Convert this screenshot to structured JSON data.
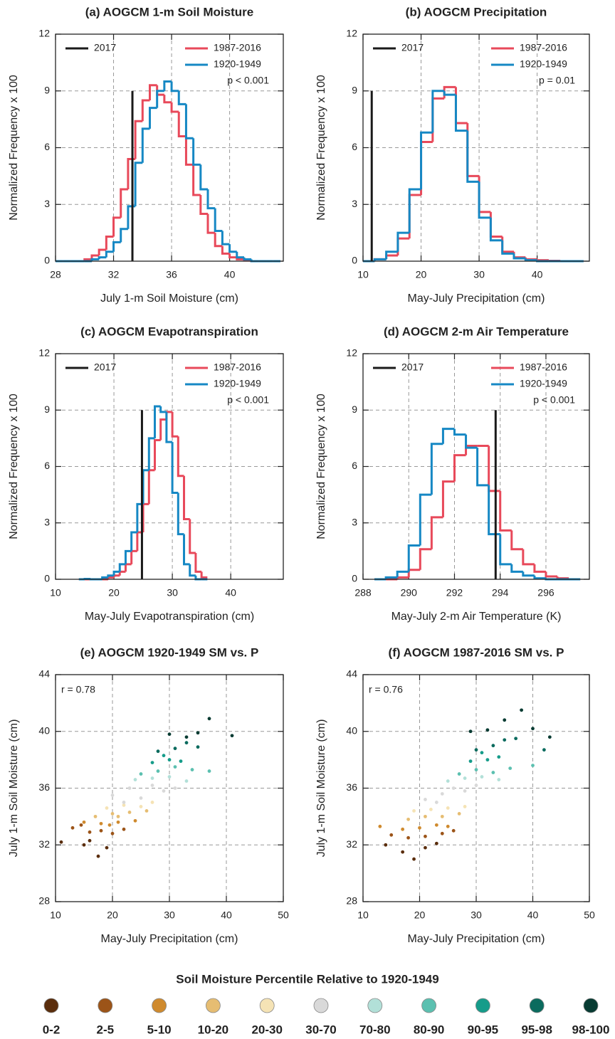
{
  "chart_data": [
    {
      "type": "histogram",
      "title": "(a) AOGCM 1-m Soil Moisture",
      "xlabel": "July 1-m Soil Moisture (cm)",
      "ylabel": "Normalized Frequency x 100",
      "xlim": [
        28,
        43.7
      ],
      "xticks": [
        28,
        32,
        36,
        40
      ],
      "ylim": [
        0,
        12
      ],
      "yticks": [
        0,
        3,
        6,
        9,
        12
      ],
      "grid": true,
      "annotation": "p < 0.001",
      "bins": [
        28,
        28.5,
        29,
        29.5,
        30,
        30.5,
        31,
        31.5,
        32,
        32.5,
        33,
        33.5,
        34,
        34.5,
        35,
        35.5,
        36,
        36.5,
        37,
        37.5,
        38,
        38.5,
        39,
        39.5,
        40,
        40.5,
        41,
        41.5,
        42,
        42.5,
        43,
        43.5
      ],
      "series": [
        {
          "name": "1987-2016",
          "color": "#e8495a",
          "values": [
            0,
            0,
            0,
            0,
            0.1,
            0.3,
            0.6,
            1.3,
            2.3,
            3.8,
            5.4,
            7.4,
            8.5,
            9.3,
            8.8,
            8.4,
            7.9,
            6.6,
            5.1,
            3.5,
            2.5,
            1.5,
            0.8,
            0.4,
            0.2,
            0.1,
            0.05,
            0,
            0,
            0,
            0
          ]
        },
        {
          "name": "1920-1949",
          "color": "#1688c4",
          "values": [
            0,
            0,
            0,
            0,
            0,
            0.1,
            0.2,
            0.5,
            1.0,
            1.7,
            2.9,
            5.2,
            7.0,
            8.1,
            9.0,
            9.5,
            9.0,
            8.3,
            6.5,
            5.1,
            3.8,
            2.8,
            1.6,
            0.9,
            0.5,
            0.2,
            0.1,
            0,
            0,
            0,
            0
          ]
        }
      ],
      "reference": {
        "name": "2017",
        "color": "#1a1a1a",
        "x": 33.3,
        "height": 9
      }
    },
    {
      "type": "histogram",
      "title": "(b) AOGCM Precipitation",
      "xlabel": "May-July Precipitation (cm)",
      "ylabel": "Normalized Frequency x 100",
      "xlim": [
        10,
        49
      ],
      "xticks": [
        10,
        20,
        30,
        40
      ],
      "ylim": [
        0,
        12
      ],
      "yticks": [
        0,
        3,
        6,
        9,
        12
      ],
      "grid": true,
      "annotation": "p = 0.01",
      "bins": [
        10,
        12,
        14,
        16,
        18,
        20,
        22,
        24,
        26,
        28,
        30,
        32,
        34,
        36,
        38,
        40,
        42,
        44,
        46,
        48
      ],
      "series": [
        {
          "name": "1987-2016",
          "color": "#e8495a",
          "values": [
            0,
            0.1,
            0.3,
            1.2,
            3.5,
            6.3,
            8.6,
            9.2,
            7.3,
            4.5,
            2.6,
            1.3,
            0.5,
            0.2,
            0.1,
            0.05,
            0.02,
            0,
            0
          ]
        },
        {
          "name": "1920-1949",
          "color": "#1688c4",
          "values": [
            0,
            0.1,
            0.5,
            1.5,
            3.8,
            6.8,
            9.0,
            8.8,
            6.9,
            4.2,
            2.3,
            1.1,
            0.4,
            0.15,
            0.05,
            0,
            0,
            0,
            0
          ]
        }
      ],
      "reference": {
        "name": "2017",
        "color": "#1a1a1a",
        "x": 11.5,
        "height": 9
      }
    },
    {
      "type": "histogram",
      "title": "(c) AOGCM Evapotranspiration",
      "xlabel": "May-July Evapotranspiration (cm)",
      "ylabel": "Normalized Frequency x 100",
      "xlim": [
        10,
        49
      ],
      "xticks": [
        10,
        20,
        30,
        40
      ],
      "ylim": [
        0,
        12
      ],
      "yticks": [
        0,
        3,
        6,
        9,
        12
      ],
      "grid": true,
      "annotation": "p < 0.001",
      "bins": [
        14,
        15,
        16,
        17,
        18,
        19,
        20,
        21,
        22,
        23,
        24,
        25,
        26,
        27,
        28,
        29,
        30,
        31,
        32,
        33,
        34,
        35,
        36
      ],
      "series": [
        {
          "name": "1987-2016",
          "color": "#e8495a",
          "values": [
            0,
            0,
            0,
            0,
            0,
            0.1,
            0.2,
            0.4,
            0.8,
            1.5,
            2.5,
            4.0,
            5.8,
            7.4,
            8.5,
            8.9,
            7.6,
            5.5,
            3.2,
            1.4,
            0.4,
            0.1
          ]
        },
        {
          "name": "1920-1949",
          "color": "#1688c4",
          "values": [
            0,
            0.02,
            0,
            0,
            0.1,
            0.2,
            0.4,
            0.8,
            1.5,
            2.5,
            4.0,
            5.8,
            7.5,
            9.2,
            8.9,
            7.3,
            4.6,
            2.4,
            0.8,
            0.2,
            0,
            0
          ]
        }
      ],
      "reference": {
        "name": "2017",
        "color": "#1a1a1a",
        "x": 24.8,
        "height": 9
      }
    },
    {
      "type": "histogram",
      "title": "(d) AOGCM 2-m Air Temperature",
      "xlabel": "May-July 2-m Air Temperature (K)",
      "ylabel": "Normalized Frequency x 100",
      "xlim": [
        288,
        297.9
      ],
      "xticks": [
        288,
        290,
        292,
        294,
        296
      ],
      "ylim": [
        0,
        12
      ],
      "yticks": [
        0,
        3,
        6,
        9,
        12
      ],
      "grid": true,
      "annotation": "p < 0.001",
      "bins": [
        288.5,
        289,
        289.5,
        290,
        290.5,
        291,
        291.5,
        292,
        292.5,
        293,
        293.5,
        294,
        294.5,
        295,
        295.5,
        296,
        296.5,
        297,
        297.5
      ],
      "series": [
        {
          "name": "1987-2016",
          "color": "#e8495a",
          "values": [
            0,
            0,
            0.1,
            0.5,
            1.6,
            3.3,
            5.2,
            6.6,
            7.1,
            7.1,
            4.7,
            2.6,
            1.6,
            0.8,
            0.4,
            0.15,
            0.05,
            0
          ]
        },
        {
          "name": "1920-1949",
          "color": "#1688c4",
          "values": [
            0,
            0.1,
            0.4,
            1.8,
            4.5,
            7.2,
            8.0,
            7.7,
            7.0,
            5.0,
            2.4,
            0.8,
            0.4,
            0.2,
            0.05,
            0,
            0,
            0
          ]
        }
      ],
      "reference": {
        "name": "2017",
        "color": "#1a1a1a",
        "x": 293.8,
        "height": 9
      }
    },
    {
      "type": "scatter",
      "title": "(e) AOGCM 1920-1949 SM vs. P",
      "xlabel": "May-July Precipitation (cm)",
      "ylabel": "July 1-m Soil Moisture (cm)",
      "xlim": [
        10,
        50
      ],
      "xticks": [
        10,
        20,
        30,
        40,
        50
      ],
      "ylim": [
        28,
        44
      ],
      "yticks": [
        28,
        32,
        36,
        40,
        44
      ],
      "grid": true,
      "annotation": "r = 0.78",
      "legend_title": "Soil Moisture Percentile Relative to 1920-1949",
      "series": [
        {
          "name": "0-2",
          "color": "#5a2d0c",
          "x": [
            11,
            15,
            17.5,
            19,
            16
          ],
          "y": [
            32.2,
            32.0,
            31.2,
            31.8,
            32.3
          ]
        },
        {
          "name": "2-5",
          "color": "#9c5418",
          "x": [
            13,
            16,
            18,
            20,
            22,
            14.5
          ],
          "y": [
            33.2,
            32.9,
            33.0,
            32.8,
            33.1,
            33.4
          ]
        },
        {
          "name": "5-10",
          "color": "#cf8a2e",
          "x": [
            15,
            18,
            21,
            24,
            19.5
          ],
          "y": [
            33.6,
            33.5,
            33.6,
            33.7,
            33.4
          ]
        },
        {
          "name": "10-20",
          "color": "#e6bd72",
          "x": [
            17,
            20,
            23,
            26,
            21
          ],
          "y": [
            34.0,
            34.2,
            34.3,
            34.4,
            34.0
          ]
        },
        {
          "name": "20-30",
          "color": "#f5e3b5",
          "x": [
            19,
            22,
            25,
            27
          ],
          "y": [
            34.6,
            34.8,
            34.7,
            35.0
          ]
        },
        {
          "name": "30-70",
          "color": "#d9d9d9",
          "x": [
            20,
            23,
            25,
            27,
            29,
            22,
            31
          ],
          "y": [
            35.5,
            36.0,
            35.3,
            36.2,
            35.8,
            35.0,
            36.0
          ]
        },
        {
          "name": "70-80",
          "color": "#b2e0d8",
          "x": [
            24,
            27,
            30,
            33
          ],
          "y": [
            36.6,
            36.7,
            36.8,
            36.5
          ]
        },
        {
          "name": "80-90",
          "color": "#5cc0b0",
          "x": [
            25,
            28,
            31,
            34,
            37
          ],
          "y": [
            37.0,
            37.2,
            37.5,
            37.3,
            37.2
          ]
        },
        {
          "name": "90-95",
          "color": "#169c8a",
          "x": [
            27,
            30,
            32,
            29
          ],
          "y": [
            37.8,
            38.0,
            37.9,
            38.3
          ]
        },
        {
          "name": "95-98",
          "color": "#0b6b5e",
          "x": [
            28,
            31,
            33,
            35
          ],
          "y": [
            38.6,
            38.8,
            39.2,
            38.9
          ]
        },
        {
          "name": "98-100",
          "color": "#073b32",
          "x": [
            30,
            33,
            35,
            37,
            41
          ],
          "y": [
            39.8,
            39.6,
            39.9,
            40.9,
            39.7
          ]
        }
      ]
    },
    {
      "type": "scatter",
      "title": "(f) AOGCM 1987-2016 SM vs. P",
      "xlabel": "May-July Precipitation (cm)",
      "ylabel": "July 1-m Soil Moisture (cm)",
      "xlim": [
        10,
        50
      ],
      "xticks": [
        10,
        20,
        30,
        40,
        50
      ],
      "ylim": [
        28,
        44
      ],
      "yticks": [
        28,
        32,
        36,
        40,
        44
      ],
      "grid": true,
      "annotation": "r = 0.76",
      "series": [
        {
          "color": "#5a2d0c",
          "x": [
            14,
            17,
            19,
            21,
            23
          ],
          "y": [
            32.0,
            31.5,
            31.0,
            31.8,
            32.1
          ]
        },
        {
          "color": "#9c5418",
          "x": [
            15,
            18,
            21,
            24,
            26
          ],
          "y": [
            32.7,
            32.5,
            32.6,
            32.8,
            33.0
          ]
        },
        {
          "color": "#cf8a2e",
          "x": [
            13,
            17,
            20,
            23,
            25
          ],
          "y": [
            33.3,
            33.1,
            33.2,
            33.4,
            33.3
          ]
        },
        {
          "color": "#e6bd72",
          "x": [
            18,
            21,
            24,
            27
          ],
          "y": [
            33.8,
            34.0,
            34.0,
            34.2
          ]
        },
        {
          "color": "#f5e3b5",
          "x": [
            19,
            22,
            25,
            28
          ],
          "y": [
            34.4,
            34.5,
            34.6,
            34.7
          ]
        },
        {
          "color": "#d9d9d9",
          "x": [
            21,
            24,
            26,
            28,
            30,
            23
          ],
          "y": [
            35.2,
            35.6,
            36.0,
            35.8,
            36.2,
            35.0
          ]
        },
        {
          "color": "#b2e0d8",
          "x": [
            25,
            28,
            31,
            34
          ],
          "y": [
            36.5,
            36.7,
            36.8,
            36.6
          ]
        },
        {
          "color": "#5cc0b0",
          "x": [
            27,
            30,
            33,
            36,
            40
          ],
          "y": [
            37.0,
            37.3,
            37.1,
            37.4,
            37.6
          ]
        },
        {
          "color": "#169c8a",
          "x": [
            29,
            32,
            34,
            31
          ],
          "y": [
            37.9,
            38.0,
            38.2,
            38.5
          ]
        },
        {
          "color": "#0b6b5e",
          "x": [
            30,
            33,
            35,
            42,
            37
          ],
          "y": [
            38.7,
            39.0,
            39.4,
            38.7,
            39.5
          ]
        },
        {
          "color": "#073b32",
          "x": [
            29,
            32,
            35,
            38,
            43,
            40
          ],
          "y": [
            40.0,
            40.1,
            40.8,
            41.5,
            39.6,
            40.2
          ]
        }
      ]
    }
  ]
}
